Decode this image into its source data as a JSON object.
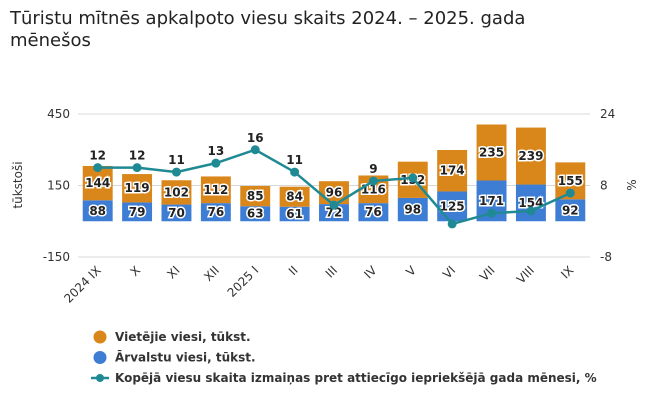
{
  "chart_data": {
    "type": "bar",
    "title": "Tūristu mītnēs apkalpoto viesu skaits 2024. – 2025. gada mēnešos",
    "y_label": "tūkstoši",
    "y2_label": "%",
    "categories": [
      "2024 IX",
      "X",
      "XI",
      "XII",
      "2025 I",
      "II",
      "III",
      "IV",
      "V",
      "VI",
      "VII",
      "VIII",
      "IX"
    ],
    "stacked": true,
    "series": [
      {
        "name": "Vietējie viesi, tūkst.",
        "color": "#d9861b",
        "stack_order": 1,
        "values": [
          144,
          119,
          102,
          112,
          85,
          84,
          96,
          116,
          152,
          174,
          235,
          239,
          155
        ]
      },
      {
        "name": "Ārvalstu viesi, tūkst.",
        "color": "#3e7dd4",
        "stack_order": 0,
        "values": [
          88,
          79,
          70,
          76,
          63,
          61,
          72,
          76,
          98,
          125,
          171,
          154,
          92
        ]
      },
      {
        "name": "Kopējā viesu skaita izmaiņas pret attiecīgo iepriekšējā gada mēnesi, %",
        "color": "#1f8a93",
        "type": "line",
        "axis": "y2",
        "values": [
          12,
          12,
          11,
          13,
          16,
          11,
          3.6,
          9,
          9.7,
          -0.6,
          1.8,
          2.3,
          6.3
        ],
        "value_labels": [
          "12",
          "12",
          "11",
          "13",
          "16",
          "11",
          null,
          "9",
          null,
          null,
          null,
          null,
          null
        ]
      }
    ],
    "ylim": [
      -150,
      450
    ],
    "yticks": [
      -150,
      150,
      450
    ],
    "y2lim": [
      -8,
      24
    ],
    "y2ticks": [
      -8,
      8,
      24
    ],
    "grid": true,
    "legend": "bottom"
  }
}
